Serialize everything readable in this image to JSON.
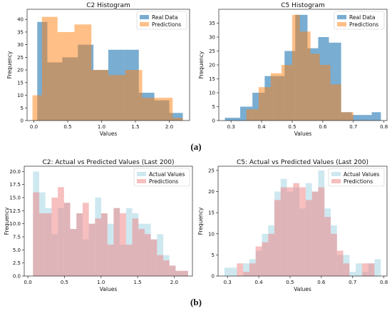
{
  "panel_labels": [
    "(a)",
    "(b)"
  ],
  "chart_data": [
    {
      "id": "c2-hist",
      "type": "bar",
      "title": "C2 Histogram",
      "xlabel": "Values",
      "ylabel": "Frequency",
      "xlim": [
        -0.1,
        2.3
      ],
      "ylim": [
        0,
        44
      ],
      "xticks": [
        0.0,
        0.5,
        1.0,
        1.5,
        2.0
      ],
      "xtick_labels": [
        "0.0",
        "0.5",
        "1.0",
        "1.5",
        "2.0"
      ],
      "yticks": [
        0,
        5,
        10,
        15,
        20,
        25,
        30,
        35,
        40
      ],
      "legend_position": "top-right",
      "series": [
        {
          "name": "Real Data",
          "color": "#1f77b4",
          "alpha": 0.6,
          "bins": [
            [
              0.05,
              0.2,
              39
            ],
            [
              0.2,
              0.42,
              23
            ],
            [
              0.42,
              0.65,
              25
            ],
            [
              0.65,
              0.88,
              30
            ],
            [
              0.88,
              1.1,
              20
            ],
            [
              1.1,
              1.33,
              28
            ],
            [
              1.33,
              1.55,
              28
            ],
            [
              1.55,
              1.78,
              11
            ],
            [
              1.78,
              2.0,
              8
            ],
            [
              2.0,
              2.2,
              3
            ]
          ]
        },
        {
          "name": "Predictions",
          "color": "#ff7f0e",
          "alpha": 0.5,
          "bins": [
            [
              -0.02,
              0.12,
              10
            ],
            [
              0.12,
              0.35,
              41
            ],
            [
              0.35,
              0.6,
              35
            ],
            [
              0.6,
              0.85,
              38
            ],
            [
              0.85,
              1.1,
              20
            ],
            [
              1.1,
              1.35,
              18
            ],
            [
              1.35,
              1.6,
              20
            ],
            [
              1.6,
              1.85,
              9
            ],
            [
              1.85,
              2.05,
              9
            ],
            [
              2.05,
              2.2,
              1
            ]
          ]
        }
      ]
    },
    {
      "id": "c5-hist",
      "type": "bar",
      "title": "C5 Histogram",
      "xlabel": "Values",
      "ylabel": "Frequency",
      "xlim": [
        0.26,
        0.81
      ],
      "ylim": [
        0,
        40
      ],
      "xticks": [
        0.3,
        0.4,
        0.5,
        0.6,
        0.7,
        0.8
      ],
      "xtick_labels": [
        "0.3",
        "0.4",
        "0.5",
        "0.6",
        "0.7",
        "0.8"
      ],
      "yticks": [
        0,
        5,
        10,
        15,
        20,
        25,
        30,
        35
      ],
      "legend_position": "top-right",
      "series": [
        {
          "name": "Real Data",
          "color": "#1f77b4",
          "alpha": 0.6,
          "bins": [
            [
              0.28,
              0.33,
              1
            ],
            [
              0.33,
              0.37,
              5
            ],
            [
              0.37,
              0.41,
              10
            ],
            [
              0.41,
              0.44,
              16
            ],
            [
              0.44,
              0.475,
              16
            ],
            [
              0.475,
              0.51,
              25
            ],
            [
              0.51,
              0.55,
              38
            ],
            [
              0.55,
              0.585,
              26
            ],
            [
              0.585,
              0.62,
              30
            ],
            [
              0.62,
              0.66,
              28
            ],
            [
              0.66,
              0.695,
              3
            ],
            [
              0.695,
              0.73,
              2
            ],
            [
              0.73,
              0.76,
              2
            ],
            [
              0.76,
              0.79,
              3
            ]
          ]
        },
        {
          "name": "Predictions",
          "color": "#ff7f0e",
          "alpha": 0.5,
          "bins": [
            [
              0.35,
              0.39,
              4
            ],
            [
              0.39,
              0.43,
              12
            ],
            [
              0.43,
              0.465,
              17
            ],
            [
              0.465,
              0.5,
              20
            ],
            [
              0.5,
              0.525,
              38
            ],
            [
              0.525,
              0.56,
              32
            ],
            [
              0.56,
              0.59,
              24
            ],
            [
              0.59,
              0.625,
              20
            ],
            [
              0.625,
              0.66,
              13
            ],
            [
              0.66,
              0.7,
              3
            ]
          ]
        }
      ]
    },
    {
      "id": "c2-last200",
      "type": "bar",
      "title": "C2: Actual vs Predicted Values (Last 200)",
      "xlabel": "Values",
      "ylabel": "Frequency",
      "xlim": [
        -0.05,
        2.25
      ],
      "ylim": [
        0,
        21
      ],
      "xticks": [
        0.0,
        0.5,
        1.0,
        1.5,
        2.0
      ],
      "xtick_labels": [
        "0.0",
        "0.5",
        "1.0",
        "1.5",
        "2.0"
      ],
      "yticks": [
        0.0,
        2.5,
        5.0,
        7.5,
        10.0,
        12.5,
        15.0,
        17.5,
        20.0
      ],
      "ytick_labels": [
        "0.0",
        "2.5",
        "5.0",
        "7.5",
        "10.0",
        "12.5",
        "15.0",
        "17.5",
        "20.0"
      ],
      "legend_position": "top-right",
      "series": [
        {
          "name": "Actual Values",
          "color": "#add8e6",
          "alpha": 0.6,
          "values": [
            20,
            16,
            13,
            8,
            13,
            14,
            9,
            12,
            7,
            10,
            15,
            12,
            10,
            13,
            6,
            13,
            12,
            10,
            10,
            7,
            8,
            4,
            2,
            1,
            1
          ]
        },
        {
          "name": "Predictions",
          "color": "#f08080",
          "alpha": 0.5,
          "values": [
            16,
            12,
            12,
            15,
            17,
            14,
            9,
            12,
            14,
            10,
            11,
            12,
            6,
            13,
            12,
            6,
            11,
            9,
            8,
            7,
            4,
            3,
            2,
            1,
            1
          ]
        }
      ],
      "bin_range": [
        0.07,
        2.19
      ]
    },
    {
      "id": "c5-last200",
      "type": "bar",
      "title": "C5: Actual vs Predicted Values (Last 200)",
      "xlabel": "Values",
      "ylabel": "Frequency",
      "xlim": [
        0.27,
        0.81
      ],
      "ylim": [
        0,
        26
      ],
      "xticks": [
        0.3,
        0.4,
        0.5,
        0.6,
        0.7,
        0.8
      ],
      "xtick_labels": [
        "0.3",
        "0.4",
        "0.5",
        "0.6",
        "0.7",
        "0.8"
      ],
      "yticks": [
        0,
        5,
        10,
        15,
        20,
        25
      ],
      "legend_position": "top-right",
      "series": [
        {
          "name": "Actual Values",
          "color": "#add8e6",
          "alpha": 0.6,
          "bins": [
            [
              0.29,
              0.31,
              2
            ],
            [
              0.31,
              0.33,
              2
            ],
            [
              0.35,
              0.37,
              3
            ],
            [
              0.37,
              0.39,
              4
            ],
            [
              0.39,
              0.41,
              6
            ],
            [
              0.41,
              0.43,
              10
            ],
            [
              0.43,
              0.45,
              12
            ],
            [
              0.45,
              0.47,
              20
            ],
            [
              0.47,
              0.49,
              23
            ],
            [
              0.49,
              0.51,
              20
            ],
            [
              0.51,
              0.53,
              21
            ],
            [
              0.53,
              0.55,
              16
            ],
            [
              0.55,
              0.57,
              22
            ],
            [
              0.57,
              0.59,
              20
            ],
            [
              0.59,
              0.61,
              25
            ],
            [
              0.61,
              0.63,
              16
            ],
            [
              0.63,
              0.65,
              12
            ],
            [
              0.65,
              0.67,
              5
            ],
            [
              0.67,
              0.69,
              5
            ],
            [
              0.69,
              0.71,
              1
            ],
            [
              0.71,
              0.73,
              3
            ],
            [
              0.73,
              0.75,
              1
            ],
            [
              0.75,
              0.77,
              3
            ],
            [
              0.77,
              0.79,
              4
            ]
          ]
        },
        {
          "name": "Predictions",
          "color": "#f08080",
          "alpha": 0.5,
          "bins": [
            [
              0.33,
              0.35,
              3
            ],
            [
              0.35,
              0.37,
              1
            ],
            [
              0.37,
              0.39,
              3
            ],
            [
              0.39,
              0.41,
              7
            ],
            [
              0.41,
              0.43,
              8
            ],
            [
              0.43,
              0.45,
              10
            ],
            [
              0.45,
              0.47,
              18
            ],
            [
              0.47,
              0.49,
              21
            ],
            [
              0.49,
              0.51,
              21
            ],
            [
              0.51,
              0.53,
              22
            ],
            [
              0.53,
              0.55,
              21
            ],
            [
              0.55,
              0.57,
              18
            ],
            [
              0.57,
              0.59,
              20
            ],
            [
              0.59,
              0.61,
              21
            ],
            [
              0.61,
              0.63,
              14
            ],
            [
              0.63,
              0.65,
              10
            ],
            [
              0.65,
              0.67,
              6
            ],
            [
              0.67,
              0.69,
              3
            ],
            [
              0.73,
              0.75,
              3
            ],
            [
              0.75,
              0.77,
              3
            ]
          ]
        }
      ]
    }
  ]
}
